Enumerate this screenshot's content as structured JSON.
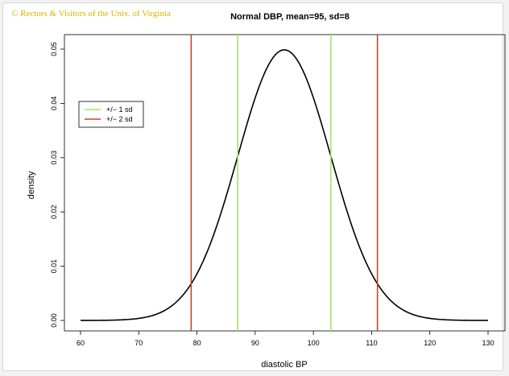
{
  "copyright": "© Rectors & Visitors of the Univ. of Virginia",
  "chart_data": {
    "type": "line",
    "title": "Normal DBP, mean=95, sd=8",
    "xlabel": "diastolic BP",
    "ylabel": "density",
    "xlim": [
      60,
      130
    ],
    "ylim": [
      0,
      0.05
    ],
    "x_ticks": [
      60,
      70,
      80,
      90,
      100,
      110,
      120,
      130
    ],
    "y_ticks": [
      "0.00",
      "0.01",
      "0.02",
      "0.03",
      "0.04",
      "0.05"
    ],
    "grid": false,
    "legend_placement": "top-left",
    "series": [
      {
        "kind": "normal-density-curve",
        "mean": 95,
        "sd": 8,
        "color": "#000000",
        "x": [
          60,
          65,
          70,
          75,
          79,
          83,
          87,
          90,
          93,
          95,
          97,
          100,
          103,
          107,
          111,
          115,
          120,
          125,
          130
        ],
        "y": [
          0.0,
          0.0001,
          0.0004,
          0.002,
          0.0068,
          0.0162,
          0.0302,
          0.0411,
          0.0484,
          0.0499,
          0.0484,
          0.0411,
          0.0302,
          0.0162,
          0.0068,
          0.002,
          0.0004,
          0.0001,
          0.0
        ]
      },
      {
        "name": "+/− 1 sd",
        "kind": "vline",
        "x": [
          87,
          103
        ],
        "color": "#a6e36b"
      },
      {
        "name": "+/− 2 sd",
        "kind": "vline",
        "x": [
          79,
          111
        ],
        "color": "#c8452b"
      }
    ],
    "legend": [
      {
        "label": "+/− 1 sd",
        "color": "#a6e36b"
      },
      {
        "label": "+/− 2 sd",
        "color": "#c8452b"
      }
    ]
  }
}
